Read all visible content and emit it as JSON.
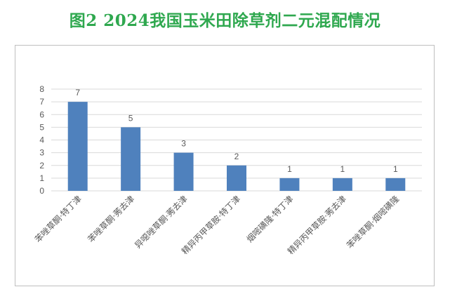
{
  "title": "图2  2024我国玉米田除草剂二元混配情况",
  "colors": {
    "title": "#2fa84f",
    "bar": "#4f81bd",
    "grid": "#d9d9d9",
    "axis_text": "#595959"
  },
  "chart_data": {
    "type": "bar",
    "title": "图2  2024我国玉米田除草剂二元混配情况",
    "xlabel": "",
    "ylabel": "",
    "ylim": [
      0,
      8
    ],
    "yticks": [
      0,
      1,
      2,
      3,
      4,
      5,
      6,
      7,
      8
    ],
    "grid": true,
    "legend": "none",
    "data_labels": true,
    "categories": [
      "苯唑草酮·特丁津",
      "苯唑草酮·莠去津",
      "异噁唑草酮·莠去津",
      "精异丙甲草胺·特丁津",
      "烟嘧磺隆·特丁津",
      "精异丙甲草胺·莠去津",
      "苯唑草酮·烟嘧磺隆"
    ],
    "values": [
      7,
      5,
      3,
      2,
      1,
      1,
      1
    ]
  }
}
